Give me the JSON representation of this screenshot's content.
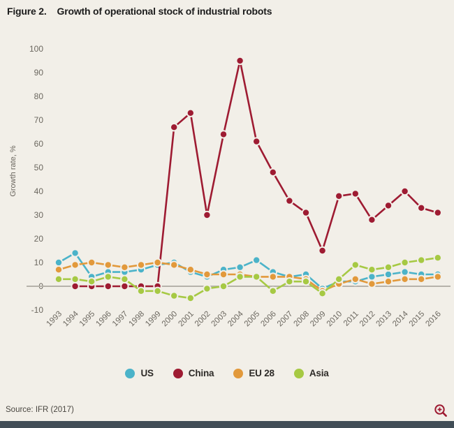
{
  "page": {
    "background": "#f2efe8",
    "title_prefix": "Figure 2.",
    "title": "Growth of operational stock of industrial robots",
    "source": "Source: IFR (2017)",
    "accent_color": "#9e1b32",
    "axis_text_color": "#6b675f",
    "zero_line_color": "#b6b2aa"
  },
  "legend": {
    "items": [
      {
        "label": "US",
        "color": "#4bb3c9"
      },
      {
        "label": "China",
        "color": "#9e1b32"
      },
      {
        "label": "EU 28",
        "color": "#e2993b"
      },
      {
        "label": "Asia",
        "color": "#a6c943"
      }
    ]
  },
  "chart_data": {
    "type": "line",
    "title": "Figure 2. Growth of operational stock of industrial robots",
    "xlabel": "",
    "ylabel": "Growth rate, %",
    "ylim": [
      -10,
      100
    ],
    "ytick_step": 10,
    "grid": false,
    "legend_position": "bottom",
    "categories": [
      "1993",
      "1994",
      "1995",
      "1996",
      "1997",
      "1998",
      "1999",
      "2000",
      "2001",
      "2002",
      "2003",
      "2004",
      "2005",
      "2006",
      "2007",
      "2008",
      "2009",
      "2010",
      "2011",
      "2012",
      "2013",
      "2014",
      "2015",
      "2016"
    ],
    "series": [
      {
        "name": "US",
        "color": "#4bb3c9",
        "values": [
          10,
          14,
          4,
          6,
          6,
          7,
          9,
          10,
          6,
          4,
          7,
          8,
          11,
          6,
          4,
          5,
          -1,
          2,
          2,
          4,
          5,
          6,
          5,
          5
        ]
      },
      {
        "name": "China",
        "color": "#9e1b32",
        "values": [
          null,
          0,
          0,
          0,
          0,
          0,
          0,
          67,
          73,
          30,
          64,
          95,
          61,
          48,
          36,
          31,
          15,
          38,
          39,
          28,
          34,
          40,
          33,
          31
        ]
      },
      {
        "name": "EU 28",
        "color": "#e2993b",
        "values": [
          7,
          9,
          10,
          9,
          8,
          9,
          10,
          9,
          7,
          5,
          5,
          5,
          4,
          4,
          4,
          3,
          -2,
          1,
          3,
          1,
          2,
          3,
          3,
          4
        ]
      },
      {
        "name": "Asia",
        "color": "#a6c943",
        "values": [
          3,
          3,
          2,
          4,
          3,
          -2,
          -2,
          -4,
          -5,
          -1,
          0,
          4,
          4,
          -2,
          2,
          2,
          -3,
          3,
          9,
          7,
          8,
          10,
          11,
          12
        ]
      }
    ]
  }
}
